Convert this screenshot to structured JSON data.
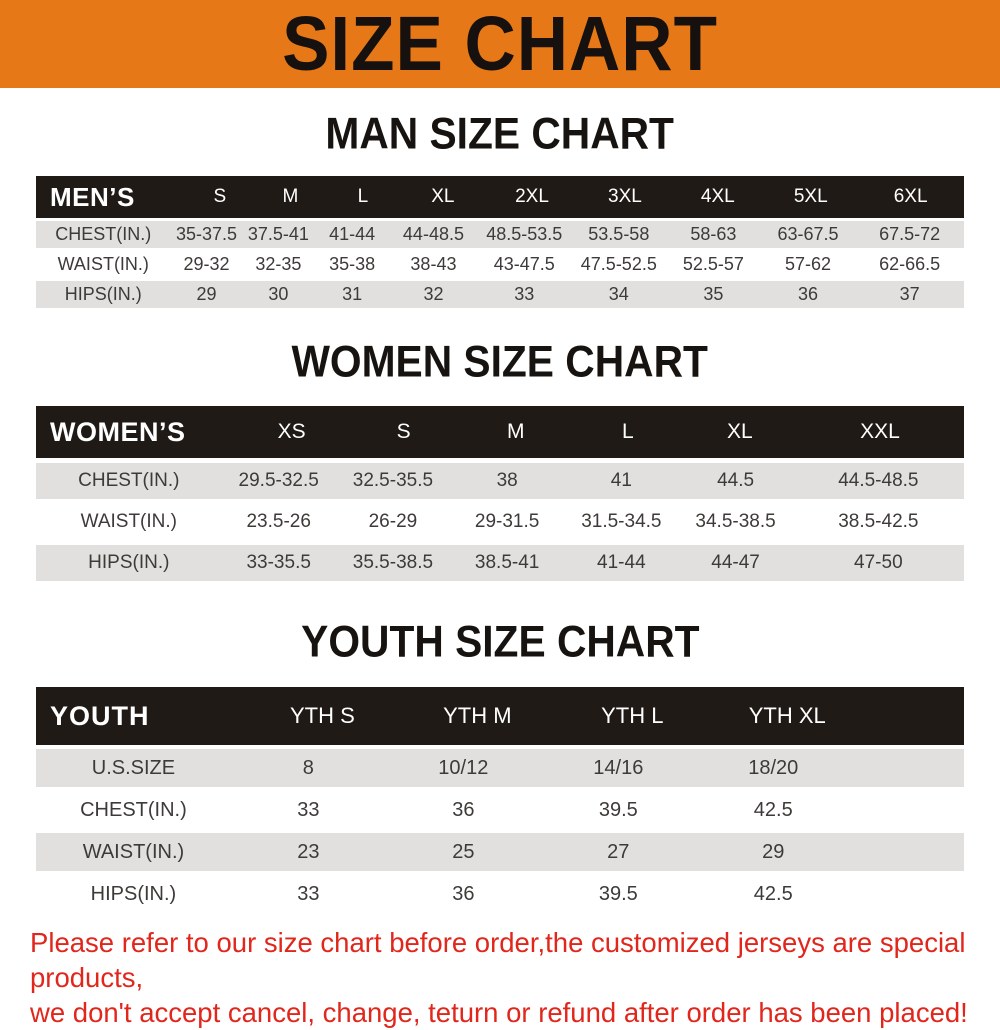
{
  "banner": {
    "title": "SIZE CHART"
  },
  "colors": {
    "banner_bg": "#e67817",
    "table_header_bg": "#1f1a16",
    "stripe_bg": "#e1e0de",
    "table_text": "#3d3b38",
    "footer_text": "#e1261c"
  },
  "chart_data": [
    {
      "type": "table",
      "title": "MAN SIZE CHART",
      "columns": [
        "MEN’S",
        "S",
        "M",
        "L",
        "XL",
        "2XL",
        "3XL",
        "4XL",
        "5XL",
        "6XL"
      ],
      "rows": [
        [
          "CHEST(IN.)",
          "35-37.5",
          "37.5-41",
          "41-44",
          "44-48.5",
          "48.5-53.5",
          "53.5-58",
          "58-63",
          "63-67.5",
          "67.5-72"
        ],
        [
          "WAIST(IN.)",
          "29-32",
          "32-35",
          "35-38",
          "38-43",
          "43-47.5",
          "47.5-52.5",
          "52.5-57",
          "57-62",
          "62-66.5"
        ],
        [
          "HIPS(IN.)",
          "29",
          "30",
          "31",
          "32",
          "33",
          "34",
          "35",
          "36",
          "37"
        ]
      ]
    },
    {
      "type": "table",
      "title": "WOMEN SIZE CHART",
      "columns": [
        "WOMEN’S",
        "XS",
        "S",
        "M",
        "L",
        "XL",
        "XXL"
      ],
      "rows": [
        [
          "CHEST(IN.)",
          "29.5-32.5",
          "32.5-35.5",
          "38",
          "41",
          "44.5",
          "44.5-48.5"
        ],
        [
          "WAIST(IN.)",
          "23.5-26",
          "26-29",
          "29-31.5",
          "31.5-34.5",
          "34.5-38.5",
          "38.5-42.5"
        ],
        [
          "HIPS(IN.)",
          "33-35.5",
          "35.5-38.5",
          "38.5-41",
          "41-44",
          "44-47",
          "47-50"
        ]
      ]
    },
    {
      "type": "table",
      "title": "YOUTH SIZE CHART",
      "columns": [
        "YOUTH",
        "YTH S",
        "YTH M",
        "YTH L",
        "YTH XL"
      ],
      "rows": [
        [
          "U.S.SIZE",
          "8",
          "10/12",
          "14/16",
          "18/20"
        ],
        [
          "CHEST(IN.)",
          "33",
          "36",
          "39.5",
          "42.5"
        ],
        [
          "WAIST(IN.)",
          "23",
          "25",
          "27",
          "29"
        ],
        [
          "HIPS(IN.)",
          "33",
          "36",
          "39.5",
          "42.5"
        ]
      ]
    }
  ],
  "footer": {
    "line1": "Please refer to our size chart before order,the customized jerseys are special products,",
    "line2": "we don't accept cancel, change, teturn or refund after order has been placed!"
  }
}
